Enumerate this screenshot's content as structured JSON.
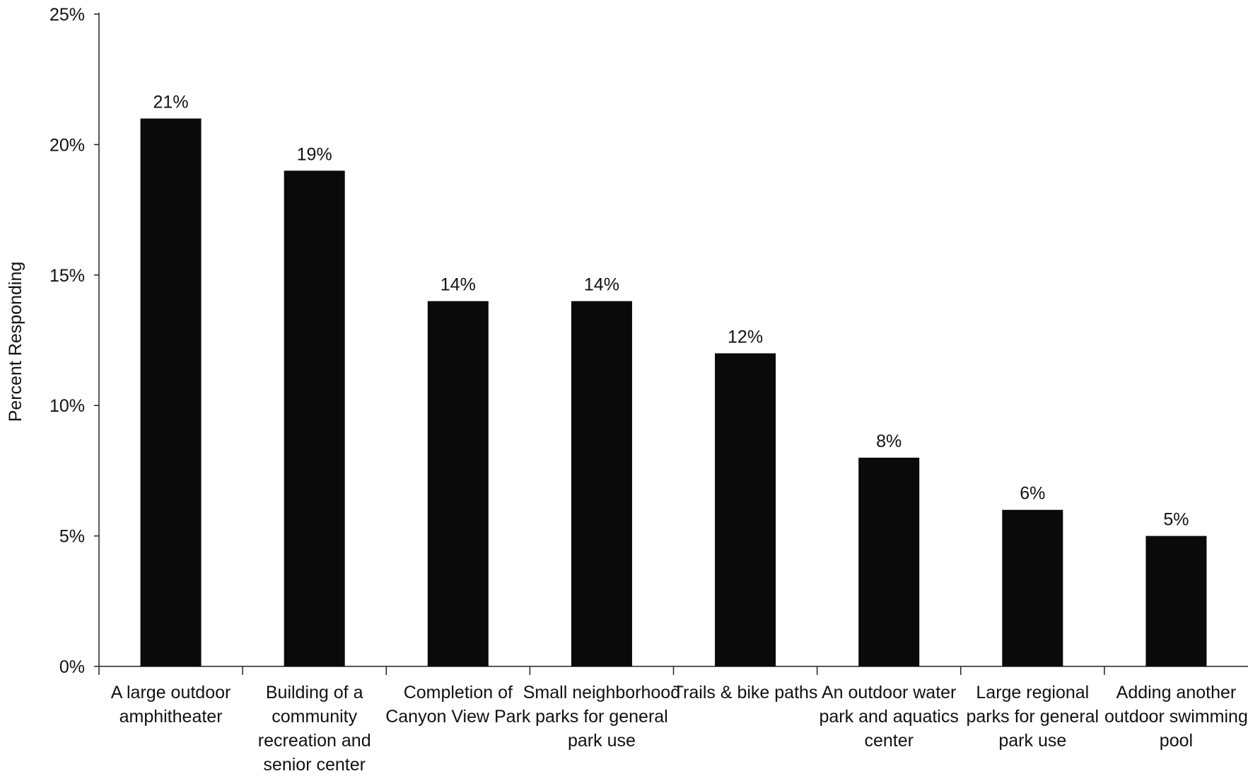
{
  "chart_data": {
    "type": "bar",
    "ylabel": "Percent Responding",
    "xlabel": "",
    "ylim": [
      0,
      25
    ],
    "yticks": [
      0,
      5,
      10,
      15,
      20,
      25
    ],
    "ytick_labels": [
      "0%",
      "5%",
      "10%",
      "15%",
      "20%",
      "25%"
    ],
    "grid": false,
    "bar_color": "#0a0a0a",
    "categories": [
      [
        "A large outdoor",
        "amphitheater"
      ],
      [
        "Building of a",
        "community",
        "recreation and",
        "senior center"
      ],
      [
        "Completion of",
        "Canyon View Park"
      ],
      [
        "Small neighborhood",
        "parks for general",
        "park use"
      ],
      [
        "Trails & bike paths"
      ],
      [
        "An outdoor water",
        "park and aquatics",
        "center"
      ],
      [
        "Large regional",
        "parks for general",
        "park use"
      ],
      [
        "Adding another",
        "outdoor swimming",
        "pool"
      ]
    ],
    "values": [
      21,
      19,
      14,
      14,
      12,
      8,
      6,
      5
    ],
    "value_labels": [
      "21%",
      "19%",
      "14%",
      "14%",
      "12%",
      "8%",
      "6%",
      "5%"
    ]
  }
}
